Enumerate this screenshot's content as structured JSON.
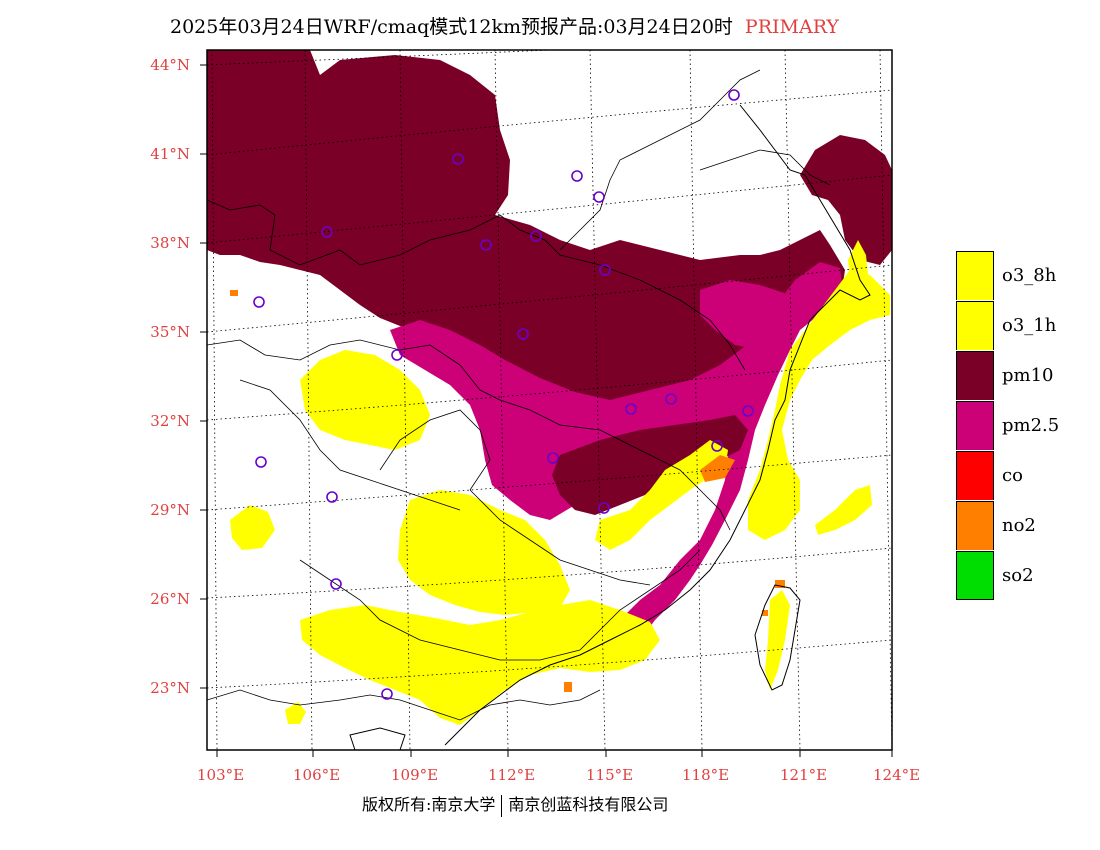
{
  "title": {
    "text": "2025年03月24日WRF/cmaq模式12km预报产品:03月24日20时",
    "tag": "PRIMARY",
    "tag_color": "#e04040"
  },
  "axes": {
    "lat_labels": [
      "44°N",
      "41°N",
      "38°N",
      "35°N",
      "32°N",
      "29°N",
      "26°N",
      "23°N"
    ],
    "lon_labels": [
      "103°E",
      "106°E",
      "109°E",
      "112°E",
      "115°E",
      "118°E",
      "121°E",
      "124°E"
    ]
  },
  "legend": {
    "items": [
      {
        "label": "o3_8h",
        "color": "#ffff00"
      },
      {
        "label": "o3_1h",
        "color": "#ffff00"
      },
      {
        "label": "pm10",
        "color": "#7a0028"
      },
      {
        "label": "pm2.5",
        "color": "#cc0077"
      },
      {
        "label": "co",
        "color": "#ff0000"
      },
      {
        "label": "no2",
        "color": "#ff8000"
      },
      {
        "label": "so2",
        "color": "#00dd00"
      }
    ]
  },
  "footer": {
    "left": "版权所有:南京大学",
    "right": "南京创蓝科技有限公司"
  }
}
